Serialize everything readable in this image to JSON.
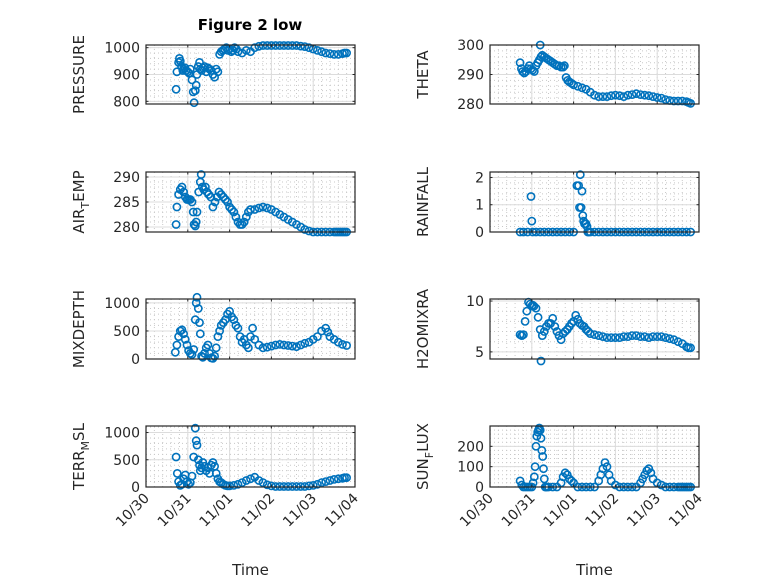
{
  "figure": {
    "title": "Figure 2 low",
    "marker_color": "#0072BD"
  },
  "chart_data": [
    {
      "type": "scatter",
      "name": "PRESSURE",
      "title": "Figure 2 low",
      "ylabel": "PRESSURE",
      "xlabel": "",
      "xlim": [
        0,
        5
      ],
      "ylim": [
        790,
        1010
      ],
      "yticks": [
        800,
        900,
        1000
      ],
      "xticks": [
        0,
        1,
        2,
        3,
        4,
        5
      ],
      "xticklabels": [
        "10/30",
        "10/31",
        "11/01",
        "11/02",
        "11/03",
        "11/04"
      ],
      "grid": true,
      "x": [
        0.72,
        0.74,
        0.78,
        0.8,
        0.82,
        0.85,
        0.88,
        0.9,
        0.93,
        0.96,
        1.0,
        1.03,
        1.06,
        1.1,
        1.13,
        1.15,
        1.18,
        1.2,
        1.22,
        1.25,
        1.28,
        1.3,
        1.33,
        1.36,
        1.4,
        1.44,
        1.48,
        1.52,
        1.56,
        1.6,
        1.64,
        1.68,
        1.72,
        1.76,
        1.8,
        1.84,
        1.88,
        1.92,
        1.96,
        2.0,
        2.04,
        2.08,
        2.12,
        2.16,
        2.2,
        2.3,
        2.4,
        2.5,
        2.6,
        2.7,
        2.8,
        2.9,
        3.0,
        3.1,
        3.2,
        3.3,
        3.4,
        3.5,
        3.6,
        3.7,
        3.8,
        3.9,
        4.0,
        4.1,
        4.2,
        4.3,
        4.4,
        4.5,
        4.6,
        4.7,
        4.75,
        4.8
      ],
      "y": [
        845,
        910,
        945,
        960,
        950,
        930,
        915,
        920,
        925,
        915,
        910,
        905,
        920,
        880,
        835,
        795,
        840,
        860,
        900,
        930,
        945,
        920,
        915,
        925,
        930,
        910,
        925,
        920,
        915,
        900,
        890,
        920,
        910,
        975,
        985,
        990,
        995,
        1000,
        990,
        995,
        985,
        990,
        1000,
        995,
        985,
        980,
        990,
        985,
        1000,
        1005,
        1008,
        1008,
        1008,
        1008,
        1008,
        1008,
        1008,
        1008,
        1008,
        1006,
        1004,
        1000,
        995,
        990,
        985,
        980,
        978,
        975,
        975,
        978,
        980,
        980
      ]
    },
    {
      "type": "scatter",
      "name": "THETA",
      "ylabel": "THETA",
      "xlabel": "",
      "xlim": [
        0,
        5
      ],
      "ylim": [
        280,
        300
      ],
      "yticks": [
        280,
        290,
        300
      ],
      "xticks": [
        0,
        1,
        2,
        3,
        4,
        5
      ],
      "xticklabels": [
        "10/30",
        "10/31",
        "11/01",
        "11/02",
        "11/03",
        "11/04"
      ],
      "grid": true,
      "x": [
        0.72,
        0.75,
        0.78,
        0.82,
        0.86,
        0.9,
        0.94,
        0.98,
        1.02,
        1.06,
        1.1,
        1.14,
        1.18,
        1.2,
        1.22,
        1.25,
        1.3,
        1.35,
        1.4,
        1.45,
        1.5,
        1.55,
        1.6,
        1.65,
        1.7,
        1.75,
        1.78,
        1.82,
        1.86,
        1.9,
        1.95,
        2.0,
        2.1,
        2.2,
        2.3,
        2.4,
        2.5,
        2.6,
        2.7,
        2.8,
        2.9,
        3.0,
        3.1,
        3.2,
        3.3,
        3.4,
        3.5,
        3.6,
        3.7,
        3.8,
        3.9,
        4.0,
        4.1,
        4.2,
        4.3,
        4.4,
        4.5,
        4.6,
        4.7,
        4.75,
        4.8
      ],
      "y": [
        294,
        292,
        291,
        290.5,
        291,
        292,
        293,
        292,
        291.5,
        291,
        293,
        294,
        295,
        300,
        296,
        296.5,
        296,
        295.5,
        295,
        294.5,
        294,
        293.5,
        293,
        293,
        292.5,
        292.5,
        293,
        289,
        288,
        287.5,
        287,
        286.5,
        286,
        285.5,
        285,
        284,
        283,
        282.5,
        282.5,
        282.5,
        282.8,
        283,
        282.8,
        282.5,
        283,
        283.2,
        283.5,
        283.2,
        283,
        282.8,
        282.5,
        282.2,
        282,
        281.5,
        281.2,
        281,
        281,
        281,
        280.8,
        280.5,
        280.2
      ]
    },
    {
      "type": "scatter",
      "name": "AIR_TEMP",
      "ylabel": "AIR_TEMP",
      "xlabel": "",
      "xlim": [
        0,
        5
      ],
      "ylim": [
        279,
        291
      ],
      "yticks": [
        280,
        285,
        290
      ],
      "xticks": [
        0,
        1,
        2,
        3,
        4,
        5
      ],
      "xticklabels": [
        "10/30",
        "10/31",
        "11/01",
        "11/02",
        "11/03",
        "11/04"
      ],
      "grid": true,
      "x": [
        0.72,
        0.74,
        0.78,
        0.82,
        0.86,
        0.9,
        0.94,
        0.98,
        1.02,
        1.06,
        1.1,
        1.13,
        1.15,
        1.18,
        1.2,
        1.22,
        1.26,
        1.3,
        1.32,
        1.35,
        1.38,
        1.42,
        1.46,
        1.5,
        1.55,
        1.6,
        1.65,
        1.7,
        1.75,
        1.8,
        1.85,
        1.9,
        1.95,
        2.0,
        2.05,
        2.1,
        2.15,
        2.2,
        2.25,
        2.3,
        2.35,
        2.4,
        2.45,
        2.5,
        2.6,
        2.7,
        2.8,
        2.9,
        3.0,
        3.1,
        3.2,
        3.3,
        3.4,
        3.5,
        3.6,
        3.7,
        3.8,
        3.9,
        4.0,
        4.1,
        4.2,
        4.3,
        4.4,
        4.5,
        4.55,
        4.6,
        4.65,
        4.7,
        4.75,
        4.8
      ],
      "y": [
        280.5,
        284,
        286.5,
        287.5,
        288,
        287,
        286,
        285.5,
        285.5,
        285.5,
        285,
        283,
        280.5,
        280.2,
        281,
        283,
        287,
        289,
        290.5,
        288,
        287.5,
        288,
        287,
        286.5,
        286,
        284,
        285,
        286,
        287,
        286.5,
        286,
        285.5,
        285,
        284,
        283.5,
        283,
        282,
        281,
        280.5,
        280.5,
        281,
        282,
        283,
        283.5,
        283.5,
        283.8,
        284,
        283.8,
        283.5,
        283,
        282.5,
        282,
        281.5,
        281,
        280.5,
        280,
        279.5,
        279.2,
        279,
        279,
        279,
        279,
        279,
        279,
        279,
        279,
        279,
        279,
        279,
        279
      ]
    },
    {
      "type": "scatter",
      "name": "RAINFALL",
      "ylabel": "RAINFALL",
      "xlabel": "",
      "xlim": [
        0,
        5
      ],
      "ylim": [
        0,
        2.2
      ],
      "yticks": [
        0,
        1,
        2
      ],
      "xticks": [
        0,
        1,
        2,
        3,
        4,
        5
      ],
      "xticklabels": [
        "10/30",
        "10/31",
        "11/01",
        "11/02",
        "11/03",
        "11/04"
      ],
      "grid": true,
      "x": [
        0.72,
        0.8,
        0.9,
        0.98,
        1.0,
        1.02,
        1.1,
        1.2,
        1.3,
        1.4,
        1.5,
        1.6,
        1.7,
        1.8,
        1.9,
        2.0,
        2.08,
        2.12,
        2.14,
        2.16,
        2.18,
        2.2,
        2.22,
        2.24,
        2.26,
        2.28,
        2.3,
        2.32,
        2.34,
        2.36,
        2.4,
        2.5,
        2.6,
        2.7,
        2.8,
        2.9,
        3.0,
        3.1,
        3.2,
        3.3,
        3.4,
        3.5,
        3.6,
        3.7,
        3.8,
        3.9,
        4.0,
        4.1,
        4.2,
        4.3,
        4.4,
        4.5,
        4.6,
        4.7,
        4.8
      ],
      "y": [
        0,
        0,
        0,
        1.3,
        0.4,
        0,
        0,
        0,
        0,
        0,
        0,
        0,
        0,
        0,
        0,
        0,
        1.7,
        1.7,
        0.9,
        2.1,
        0.9,
        1.5,
        0.6,
        0.4,
        0.3,
        0.3,
        0.3,
        0.2,
        0,
        0,
        0,
        0,
        0,
        0,
        0,
        0,
        0,
        0,
        0,
        0,
        0,
        0,
        0,
        0,
        0,
        0,
        0,
        0,
        0,
        0,
        0,
        0,
        0,
        0,
        0
      ]
    },
    {
      "type": "scatter",
      "name": "MIXDEPTH",
      "ylabel": "MIXDEPTH",
      "xlabel": "",
      "xlim": [
        0,
        5
      ],
      "ylim": [
        0,
        1070
      ],
      "yticks": [
        0,
        500,
        1000
      ],
      "xticks": [
        0,
        1,
        2,
        3,
        4,
        5
      ],
      "xticklabels": [
        "10/30",
        "10/31",
        "11/01",
        "11/02",
        "11/03",
        "11/04"
      ],
      "grid": true,
      "x": [
        0.7,
        0.74,
        0.78,
        0.82,
        0.86,
        0.9,
        0.94,
        0.98,
        1.02,
        1.06,
        1.1,
        1.14,
        1.18,
        1.2,
        1.22,
        1.25,
        1.28,
        1.3,
        1.33,
        1.36,
        1.4,
        1.44,
        1.48,
        1.52,
        1.56,
        1.6,
        1.64,
        1.68,
        1.72,
        1.76,
        1.8,
        1.85,
        1.9,
        1.95,
        2.0,
        2.05,
        2.1,
        2.15,
        2.2,
        2.25,
        2.3,
        2.35,
        2.4,
        2.45,
        2.5,
        2.55,
        2.6,
        2.7,
        2.8,
        2.9,
        3.0,
        3.1,
        3.2,
        3.3,
        3.4,
        3.5,
        3.6,
        3.7,
        3.8,
        3.9,
        4.0,
        4.1,
        4.2,
        4.3,
        4.35,
        4.4,
        4.5,
        4.6,
        4.7,
        4.8
      ],
      "y": [
        120,
        250,
        400,
        500,
        520,
        450,
        350,
        250,
        150,
        100,
        80,
        170,
        700,
        1000,
        1100,
        900,
        650,
        450,
        50,
        30,
        100,
        200,
        250,
        100,
        20,
        10,
        50,
        200,
        400,
        500,
        600,
        650,
        700,
        800,
        850,
        750,
        700,
        600,
        550,
        400,
        300,
        350,
        250,
        200,
        400,
        550,
        350,
        250,
        200,
        210,
        230,
        250,
        260,
        250,
        240,
        230,
        220,
        250,
        280,
        300,
        350,
        400,
        500,
        550,
        480,
        400,
        350,
        300,
        260,
        240
      ]
    },
    {
      "type": "scatter",
      "name": "H2OMIXRA",
      "ylabel": "H2OMIXRA",
      "xlabel": "",
      "xlim": [
        0,
        5
      ],
      "ylim": [
        4.3,
        10.2
      ],
      "yticks": [
        5,
        10
      ],
      "xticks": [
        0,
        1,
        2,
        3,
        4,
        5
      ],
      "xticklabels": [
        "10/30",
        "10/31",
        "11/01",
        "11/02",
        "11/03",
        "11/04"
      ],
      "grid": true,
      "x": [
        0.72,
        0.76,
        0.8,
        0.84,
        0.88,
        0.92,
        0.96,
        1.0,
        1.02,
        1.05,
        1.1,
        1.15,
        1.2,
        1.22,
        1.25,
        1.3,
        1.35,
        1.4,
        1.45,
        1.5,
        1.55,
        1.6,
        1.65,
        1.7,
        1.75,
        1.8,
        1.85,
        1.9,
        1.95,
        2.0,
        2.05,
        2.1,
        2.15,
        2.2,
        2.25,
        2.3,
        2.35,
        2.4,
        2.5,
        2.6,
        2.7,
        2.8,
        2.9,
        3.0,
        3.1,
        3.2,
        3.3,
        3.4,
        3.5,
        3.6,
        3.7,
        3.8,
        3.9,
        4.0,
        4.1,
        4.2,
        4.3,
        4.4,
        4.5,
        4.6,
        4.7,
        4.75,
        4.8
      ],
      "y": [
        6.7,
        6.6,
        6.7,
        8.0,
        9.0,
        9.9,
        9.7,
        9.5,
        9.6,
        9.5,
        9.3,
        8.4,
        7.2,
        4.1,
        6.6,
        7.0,
        7.5,
        7.8,
        7.8,
        8.3,
        7.5,
        7.0,
        6.6,
        6.2,
        6.8,
        7.0,
        7.2,
        7.5,
        7.8,
        8.0,
        8.6,
        8.2,
        7.8,
        7.6,
        7.5,
        7.2,
        7.0,
        6.8,
        6.7,
        6.6,
        6.5,
        6.4,
        6.4,
        6.4,
        6.4,
        6.5,
        6.5,
        6.6,
        6.6,
        6.5,
        6.5,
        6.4,
        6.5,
        6.5,
        6.5,
        6.4,
        6.3,
        6.2,
        6.0,
        5.8,
        5.5,
        5.4,
        5.4
      ]
    },
    {
      "type": "scatter",
      "name": "TERR_MSL",
      "ylabel": "TERR_MSL",
      "xlabel": "Time",
      "xlim": [
        0,
        5
      ],
      "ylim": [
        0,
        1120
      ],
      "yticks": [
        0,
        500,
        1000
      ],
      "xticks": [
        0,
        1,
        2,
        3,
        4,
        5
      ],
      "xticklabels": [
        "10/30",
        "10/31",
        "11/01",
        "11/02",
        "11/03",
        "11/04"
      ],
      "grid": true,
      "x": [
        0.72,
        0.75,
        0.78,
        0.82,
        0.86,
        0.9,
        0.94,
        0.98,
        1.02,
        1.06,
        1.1,
        1.14,
        1.18,
        1.2,
        1.22,
        1.25,
        1.28,
        1.3,
        1.33,
        1.36,
        1.4,
        1.44,
        1.48,
        1.52,
        1.56,
        1.6,
        1.64,
        1.68,
        1.72,
        1.76,
        1.8,
        1.85,
        1.9,
        1.95,
        2.0,
        2.1,
        2.2,
        2.3,
        2.4,
        2.5,
        2.6,
        2.7,
        2.8,
        2.9,
        3.0,
        3.1,
        3.2,
        3.3,
        3.4,
        3.5,
        3.6,
        3.7,
        3.8,
        3.9,
        4.0,
        4.1,
        4.2,
        4.3,
        4.4,
        4.5,
        4.6,
        4.7,
        4.75,
        4.8
      ],
      "y": [
        550,
        250,
        100,
        30,
        50,
        150,
        220,
        100,
        50,
        80,
        200,
        550,
        1080,
        850,
        770,
        500,
        400,
        300,
        350,
        450,
        380,
        300,
        350,
        250,
        400,
        450,
        380,
        250,
        150,
        100,
        80,
        50,
        30,
        20,
        20,
        30,
        50,
        80,
        120,
        150,
        180,
        120,
        80,
        40,
        20,
        10,
        10,
        10,
        10,
        10,
        10,
        10,
        10,
        20,
        30,
        50,
        80,
        100,
        120,
        140,
        150,
        160,
        170,
        170
      ]
    },
    {
      "type": "scatter",
      "name": "SUN_FLUX",
      "ylabel": "SUN_FLUX",
      "xlabel": "Time",
      "xlim": [
        0,
        5
      ],
      "ylim": [
        0,
        300
      ],
      "yticks": [
        0,
        100,
        200
      ],
      "xticks": [
        0,
        1,
        2,
        3,
        4,
        5
      ],
      "xticklabels": [
        "10/30",
        "10/31",
        "11/01",
        "11/02",
        "11/03",
        "11/04"
      ],
      "grid": true,
      "x": [
        0.72,
        0.76,
        0.8,
        0.85,
        0.9,
        0.95,
        1.0,
        1.03,
        1.06,
        1.08,
        1.1,
        1.12,
        1.14,
        1.16,
        1.18,
        1.2,
        1.22,
        1.24,
        1.26,
        1.28,
        1.3,
        1.32,
        1.34,
        1.36,
        1.4,
        1.5,
        1.6,
        1.7,
        1.75,
        1.8,
        1.85,
        1.9,
        1.95,
        2.0,
        2.1,
        2.2,
        2.3,
        2.4,
        2.5,
        2.6,
        2.65,
        2.7,
        2.75,
        2.8,
        2.85,
        2.9,
        3.0,
        3.1,
        3.2,
        3.3,
        3.4,
        3.5,
        3.6,
        3.65,
        3.7,
        3.75,
        3.8,
        3.85,
        3.9,
        4.0,
        4.1,
        4.2,
        4.3,
        4.4,
        4.5,
        4.55,
        4.6,
        4.65,
        4.7,
        4.75,
        4.8
      ],
      "y": [
        30,
        10,
        0,
        0,
        0,
        0,
        0,
        20,
        50,
        100,
        200,
        250,
        270,
        280,
        290,
        280,
        240,
        180,
        150,
        90,
        40,
        0,
        0,
        0,
        0,
        0,
        0,
        20,
        50,
        70,
        60,
        40,
        30,
        20,
        0,
        0,
        0,
        0,
        0,
        30,
        60,
        90,
        120,
        100,
        60,
        30,
        10,
        0,
        0,
        0,
        0,
        0,
        20,
        40,
        60,
        80,
        90,
        70,
        40,
        20,
        10,
        0,
        0,
        0,
        0,
        0,
        0,
        0,
        0,
        0,
        0
      ]
    }
  ]
}
